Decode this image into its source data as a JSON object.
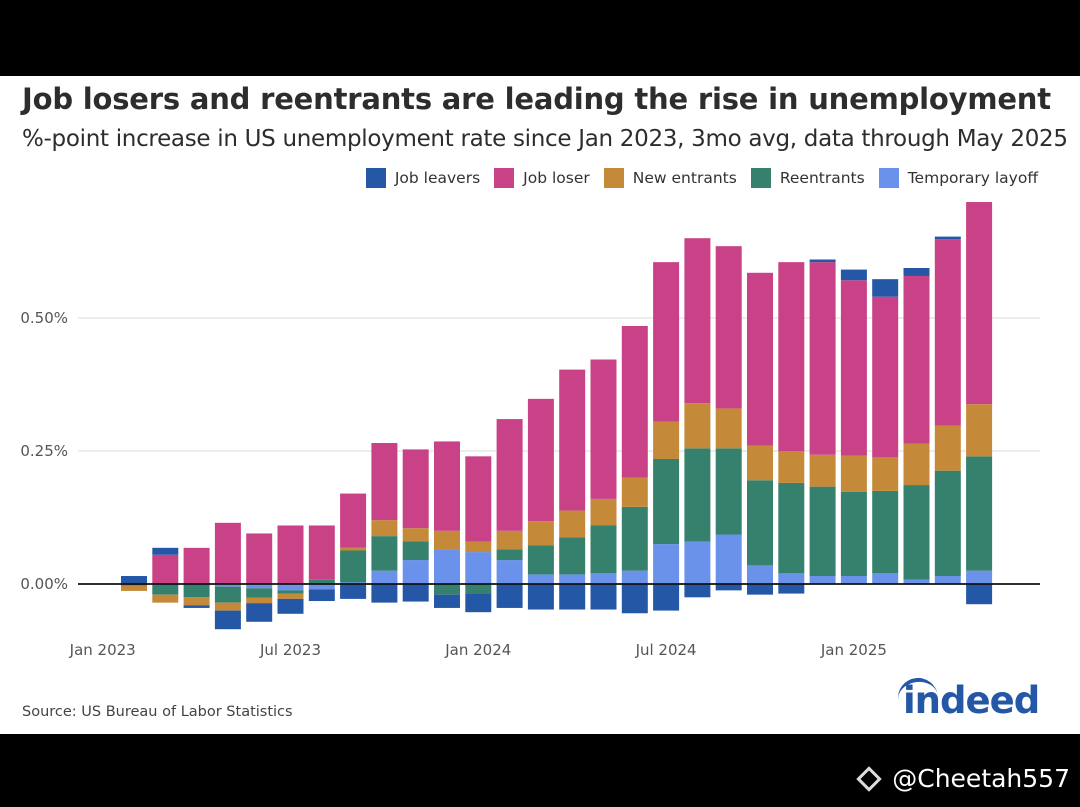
{
  "header": {
    "title": "Job losers and reentrants are leading the rise in unemployment",
    "subtitle": "%-point increase in US unemployment rate since Jan 2023, 3mo avg, data through May 2025"
  },
  "legend": [
    {
      "label": "Job leavers",
      "color": "#2557a7"
    },
    {
      "label": "Job loser",
      "color": "#c94287"
    },
    {
      "label": "New entrants",
      "color": "#c48a3a"
    },
    {
      "label": "Reentrants",
      "color": "#35816e"
    },
    {
      "label": "Temporary layoff",
      "color": "#6a92ea"
    }
  ],
  "footer": {
    "source": "Source: US Bureau of Labor Statistics",
    "logo": "indeed",
    "watermark": "@Cheetah557"
  },
  "chart_data": {
    "type": "bar",
    "stacked": true,
    "title": "Job losers and reentrants are leading the rise in unemployment",
    "subtitle": "%-point increase in US unemployment rate since Jan 2023, 3mo avg, data through May 2025",
    "xlabel": "",
    "ylabel": "",
    "ylim": [
      -0.12,
      0.72
    ],
    "yticks": [
      0.0,
      0.25,
      0.5
    ],
    "ytick_labels": [
      "0.00%",
      "0.25%",
      "0.50%"
    ],
    "xtick_labels": [
      {
        "label": "Jan 2023",
        "index": -1
      },
      {
        "label": "Jul 2023",
        "index": 5
      },
      {
        "label": "Jan 2024",
        "index": 11
      },
      {
        "label": "Jul 2024",
        "index": 17
      },
      {
        "label": "Jan 2025",
        "index": 23
      }
    ],
    "grid": true,
    "legend_position": "top-right",
    "categories": [
      "Feb 2023",
      "Mar 2023",
      "Apr 2023",
      "May 2023",
      "Jun 2023",
      "Jul 2023",
      "Aug 2023",
      "Sep 2023",
      "Oct 2023",
      "Nov 2023",
      "Dec 2023",
      "Jan 2024",
      "Feb 2024",
      "Mar 2024",
      "Apr 2024",
      "May 2024",
      "Jun 2024",
      "Jul 2024",
      "Aug 2024",
      "Sep 2024",
      "Oct 2024",
      "Nov 2024",
      "Dec 2024",
      "Jan 2025",
      "Feb 2025",
      "Mar 2025",
      "Apr 2025",
      "May 2025"
    ],
    "series": [
      {
        "name": "Temporary layoff",
        "color": "#6a92ea",
        "values": [
          0.0,
          0.0,
          0.0,
          -0.005,
          -0.008,
          -0.012,
          -0.01,
          0.003,
          0.025,
          0.045,
          0.065,
          0.06,
          0.045,
          0.018,
          0.018,
          0.02,
          0.025,
          0.075,
          0.08,
          0.093,
          0.035,
          0.02,
          0.015,
          0.015,
          0.02,
          0.008,
          0.015,
          0.025
        ]
      },
      {
        "name": "Reentrants",
        "color": "#35816e",
        "values": [
          -0.003,
          -0.02,
          -0.025,
          -0.03,
          -0.018,
          -0.006,
          0.008,
          0.06,
          0.065,
          0.035,
          -0.02,
          -0.018,
          0.02,
          0.055,
          0.07,
          0.09,
          0.12,
          0.16,
          0.175,
          0.162,
          0.16,
          0.17,
          0.168,
          0.158,
          0.155,
          0.178,
          0.198,
          0.215
        ]
      },
      {
        "name": "New entrants",
        "color": "#c48a3a",
        "values": [
          -0.01,
          -0.015,
          -0.015,
          -0.015,
          -0.01,
          -0.01,
          0.0,
          0.005,
          0.03,
          0.025,
          0.035,
          0.02,
          0.035,
          0.045,
          0.05,
          0.05,
          0.055,
          0.07,
          0.085,
          0.075,
          0.065,
          0.06,
          0.06,
          0.068,
          0.063,
          0.078,
          0.085,
          0.098
        ]
      },
      {
        "name": "Job loser",
        "color": "#c94287",
        "values": [
          0.0,
          0.055,
          0.068,
          0.115,
          0.095,
          0.11,
          0.102,
          0.102,
          0.145,
          0.148,
          0.168,
          0.16,
          0.21,
          0.23,
          0.265,
          0.262,
          0.285,
          0.3,
          0.31,
          0.305,
          0.325,
          0.355,
          0.362,
          0.33,
          0.302,
          0.315,
          0.35,
          0.38
        ]
      },
      {
        "name": "Job leavers",
        "color": "#2557a7",
        "values": [
          0.015,
          0.013,
          -0.005,
          -0.035,
          -0.035,
          -0.028,
          -0.022,
          -0.028,
          -0.035,
          -0.033,
          -0.025,
          -0.035,
          -0.045,
          -0.048,
          -0.048,
          -0.048,
          -0.055,
          -0.05,
          -0.025,
          -0.012,
          -0.02,
          -0.018,
          0.005,
          0.02,
          0.033,
          0.015,
          0.005,
          -0.038
        ]
      }
    ]
  }
}
